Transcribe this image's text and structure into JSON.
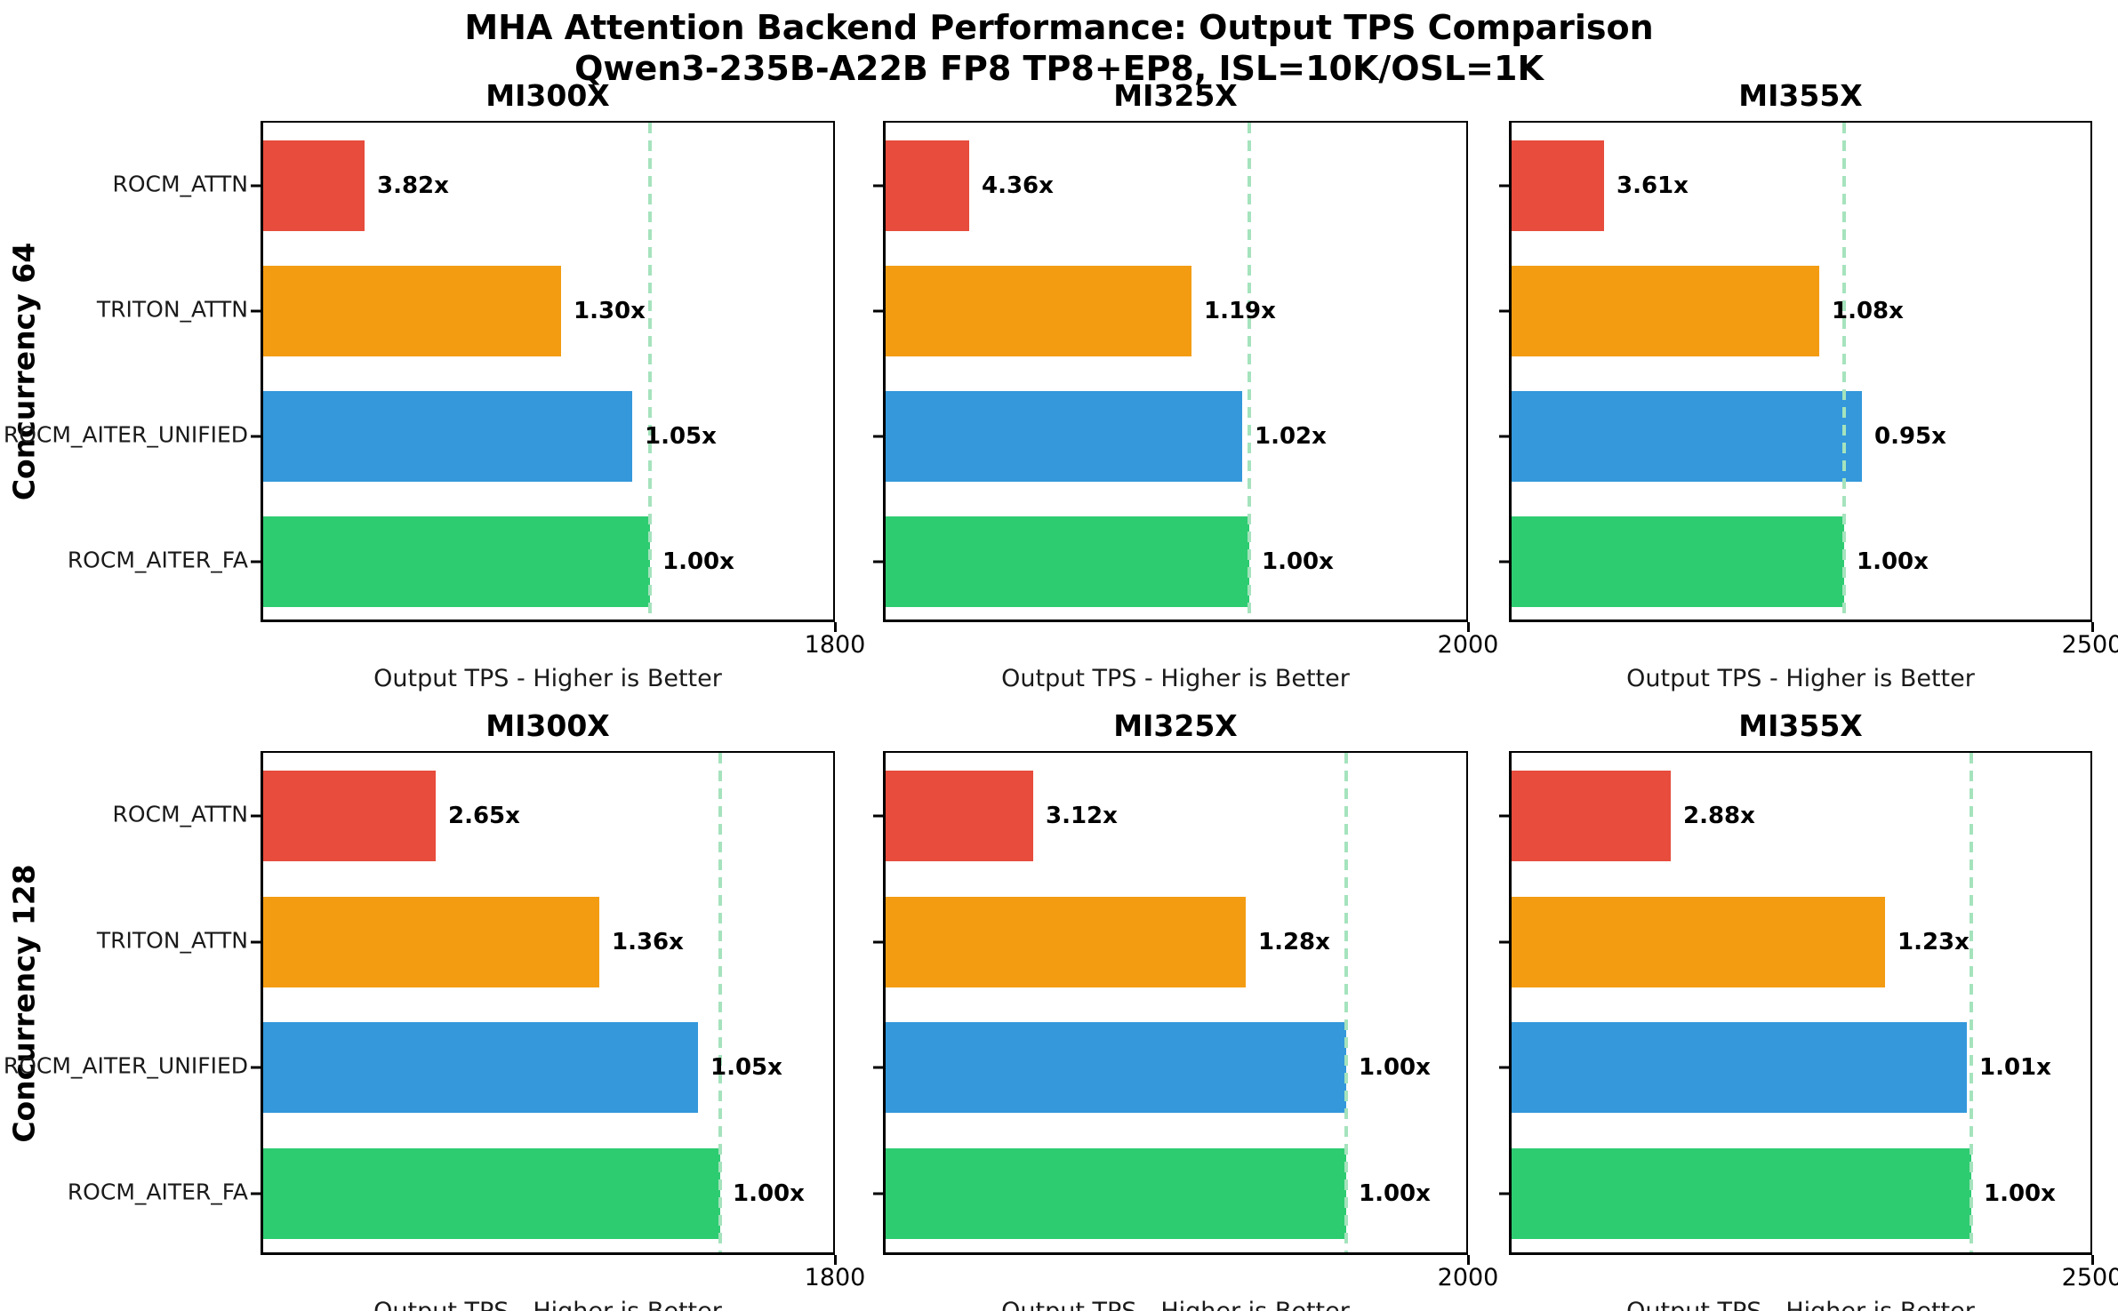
{
  "chart_data": {
    "type": "bar",
    "orientation": "horizontal",
    "title": "MHA Attention Backend Performance: Output TPS Comparison",
    "subtitle": "Qwen3-235B-A22B FP8 TP8+EP8, ISL=10K/OSL=1K",
    "xlabel": "Output TPS - Higher is Better",
    "categories": [
      "ROCM_ATTN",
      "TRITON_ATTN",
      "ROCM_AITER_UNIFIED",
      "ROCM_AITER_FA"
    ],
    "bar_colors": [
      "#E74C3C",
      "#F39C12",
      "#3498DB",
      "#2ECC71"
    ],
    "baseline_line_color": "#A5E3BD",
    "legend": "none",
    "grid": false,
    "rows": [
      {
        "label": "Concurrency 64",
        "subplots": [
          {
            "title": "MI300X",
            "axis_max": 1800,
            "tick_label": "1800",
            "baseline_frac": 0.674,
            "speedups": [
              3.82,
              1.3,
              1.05,
              1.0
            ],
            "speedup_labels": [
              "3.82x",
              "1.30x",
              "1.05x",
              "1.00x"
            ]
          },
          {
            "title": "MI325X",
            "axis_max": 2000,
            "tick_label": "2000",
            "baseline_frac": 0.622,
            "speedups": [
              4.36,
              1.19,
              1.02,
              1.0
            ],
            "speedup_labels": [
              "4.36x",
              "1.19x",
              "1.02x",
              "1.00x"
            ]
          },
          {
            "title": "MI355X",
            "axis_max": 2500,
            "tick_label": "2500",
            "baseline_frac": 0.57,
            "speedups": [
              3.61,
              1.08,
              0.95,
              1.0
            ],
            "speedup_labels": [
              "3.61x",
              "1.08x",
              "0.95x",
              "1.00x"
            ]
          }
        ]
      },
      {
        "label": "Concurrency 128",
        "subplots": [
          {
            "title": "MI300X",
            "axis_max": 1800,
            "tick_label": "1800",
            "baseline_frac": 0.795,
            "speedups": [
              2.65,
              1.36,
              1.05,
              1.0
            ],
            "speedup_labels": [
              "2.65x",
              "1.36x",
              "1.05x",
              "1.00x"
            ]
          },
          {
            "title": "MI325X",
            "axis_max": 2000,
            "tick_label": "2000",
            "baseline_frac": 0.787,
            "speedups": [
              3.12,
              1.28,
              1.0,
              1.0
            ],
            "speedup_labels": [
              "3.12x",
              "1.28x",
              "1.00x",
              "1.00x"
            ]
          },
          {
            "title": "MI355X",
            "axis_max": 2500,
            "tick_label": "2500",
            "baseline_frac": 0.788,
            "speedups": [
              2.88,
              1.23,
              1.01,
              1.0
            ],
            "speedup_labels": [
              "2.88x",
              "1.23x",
              "1.01x",
              "1.00x"
            ]
          }
        ]
      }
    ]
  }
}
